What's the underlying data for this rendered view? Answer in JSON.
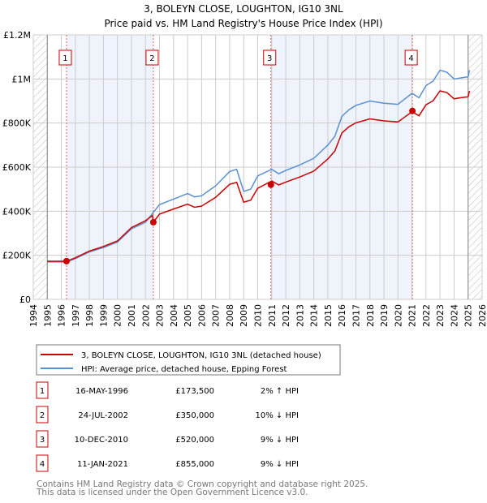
{
  "chart_data": {
    "type": "line",
    "title": "3, BOLEYN CLOSE, LOUGHTON, IG10 3NL",
    "subtitle": "Price paid vs. HM Land Registry's House Price Index (HPI)",
    "xlim": [
      1994,
      2026
    ],
    "ylim": [
      0,
      1200000
    ],
    "x_ticks": [
      "1994",
      "1995",
      "1996",
      "1997",
      "1998",
      "1999",
      "2000",
      "2001",
      "2002",
      "2003",
      "2004",
      "2005",
      "2006",
      "2007",
      "2008",
      "2009",
      "2010",
      "2011",
      "2012",
      "2013",
      "2014",
      "2015",
      "2016",
      "2017",
      "2018",
      "2019",
      "2020",
      "2021",
      "2022",
      "2023",
      "2024",
      "2025",
      "2026"
    ],
    "y_ticks": [
      {
        "v": 0,
        "label": "£0"
      },
      {
        "v": 200000,
        "label": "£200K"
      },
      {
        "v": 400000,
        "label": "£400K"
      },
      {
        "v": 600000,
        "label": "£600K"
      },
      {
        "v": 800000,
        "label": "£800K"
      },
      {
        "v": 1000000,
        "label": "£1M"
      },
      {
        "v": 1200000,
        "label": "£1.2M"
      }
    ],
    "grid": true,
    "hatched_ranges": [
      [
        1994,
        1995
      ],
      [
        2025,
        2026
      ]
    ],
    "series": [
      {
        "name": "3, BOLEYN CLOSE, LOUGHTON, IG10 3NL (detached house)",
        "color": "#cc0000",
        "x": [
          1995,
          1996.4,
          1997,
          1998,
          1999,
          2000,
          2001,
          2002,
          2002.5,
          2002.56,
          2003,
          2004,
          2005,
          2005.5,
          2006,
          2007,
          2008,
          2008.5,
          2009,
          2009.5,
          2010,
          2011,
          2011.5,
          2012,
          2013,
          2014,
          2015,
          2015.5,
          2016,
          2016.5,
          2017,
          2018,
          2019,
          2020,
          2020.5,
          2021,
          2021.5,
          2022,
          2022.5,
          2023,
          2023.5,
          2024,
          2024.5,
          2025,
          2025.1
        ],
        "y": [
          173000,
          173000,
          189000,
          219000,
          240000,
          265000,
          326000,
          357000,
          380000,
          350000,
          387000,
          410000,
          432000,
          418000,
          423000,
          463000,
          522000,
          531000,
          441000,
          450000,
          504000,
          537000,
          519000,
          532000,
          555000,
          582000,
          637000,
          673000,
          755000,
          783000,
          801000,
          819000,
          810000,
          805000,
          828000,
          851000,
          833000,
          883000,
          901000,
          946000,
          938000,
          910000,
          915000,
          919000,
          946000
        ]
      },
      {
        "name": "HPI: Average price, detached house, Epping Forest",
        "color": "#5b8fd4",
        "x": [
          1995,
          1996.4,
          1997,
          1998,
          1999,
          2000,
          2001,
          2002,
          2002.5,
          2003,
          2004,
          2005,
          2005.5,
          2006,
          2007,
          2008,
          2008.5,
          2009,
          2009.5,
          2010,
          2011,
          2011.5,
          2012,
          2013,
          2014,
          2015,
          2015.5,
          2016,
          2016.5,
          2017,
          2018,
          2019,
          2020,
          2020.5,
          2021,
          2021.5,
          2022,
          2022.5,
          2023,
          2023.5,
          2024,
          2024.5,
          2025,
          2025.1
        ],
        "y": [
          170000,
          170000,
          185000,
          215000,
          235000,
          260000,
          320000,
          350000,
          390000,
          430000,
          455000,
          480000,
          465000,
          470000,
          515000,
          580000,
          590000,
          490000,
          500000,
          560000,
          590000,
          570000,
          585000,
          610000,
          640000,
          700000,
          740000,
          830000,
          860000,
          880000,
          900000,
          890000,
          885000,
          910000,
          935000,
          915000,
          970000,
          990000,
          1040000,
          1030000,
          1000000,
          1005000,
          1010000,
          1040000
        ]
      }
    ],
    "sales": [
      {
        "n": "1",
        "x": 1996.37,
        "date": "16-MAY-1996",
        "price": 173500,
        "price_label": "£173,500",
        "hpi": "2% ↑ HPI"
      },
      {
        "n": "2",
        "x": 2002.56,
        "date": "24-JUL-2002",
        "price": 350000,
        "price_label": "£350,000",
        "hpi": "10% ↓ HPI"
      },
      {
        "n": "3",
        "x": 2010.94,
        "date": "10-DEC-2010",
        "price": 520000,
        "price_label": "£520,000",
        "hpi": "9% ↓ HPI"
      },
      {
        "n": "4",
        "x": 2021.03,
        "date": "11-JAN-2021",
        "price": 855000,
        "price_label": "£855,000",
        "hpi": "9% ↓ HPI"
      }
    ],
    "shaded_ranges": [
      [
        1996.37,
        2002.56
      ],
      [
        2010.94,
        2021.03
      ]
    ],
    "legend_placement": "below"
  },
  "footer": {
    "line1": "Contains HM Land Registry data © Crown copyright and database right 2025.",
    "line2": "This data is licensed under the Open Government Licence v3.0."
  }
}
